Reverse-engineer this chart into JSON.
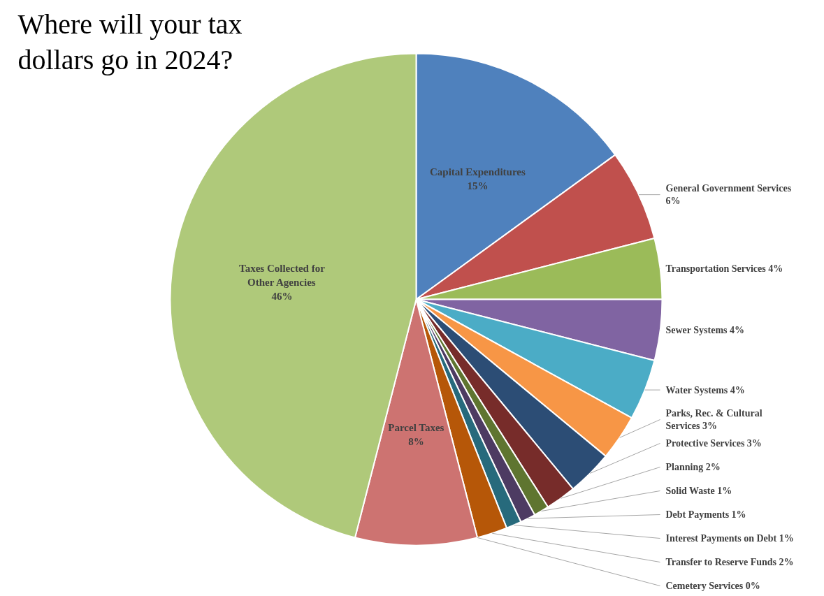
{
  "chart_data": {
    "type": "pie",
    "title": "Where will your tax dollars go in 2024?",
    "categories": [
      "Capital Expenditures",
      "General Government Services",
      "Transportation Services",
      "Sewer Systems",
      "Water Systems",
      "Parks, Rec. & Cultural Services",
      "Protective Services",
      "Planning",
      "Solid Waste",
      "Debt Payments",
      "Interest Payments on Debt",
      "Transfer to Reserve Funds",
      "Cemetery Services",
      "Parcel Taxes",
      "Taxes Collected for Other Agencies"
    ],
    "values": [
      15,
      6,
      4,
      4,
      4,
      3,
      3,
      2,
      1,
      1,
      1,
      2,
      0,
      8,
      46
    ],
    "colors": [
      "#4f81bd",
      "#c0504d",
      "#9bbb59",
      "#8064a2",
      "#4bacc6",
      "#f79646",
      "#2c4d75",
      "#772c2a",
      "#5f7530",
      "#4d3b62",
      "#276a7c",
      "#b65708",
      "#729aca",
      "#cd7371",
      "#afc97a"
    ],
    "value_labels": [
      "15%",
      "6%",
      "4%",
      "4%",
      "4%",
      "3%",
      "3%",
      "2%",
      "1%",
      "1%",
      "1%",
      "2%",
      "0%",
      "8%",
      "46%"
    ]
  }
}
